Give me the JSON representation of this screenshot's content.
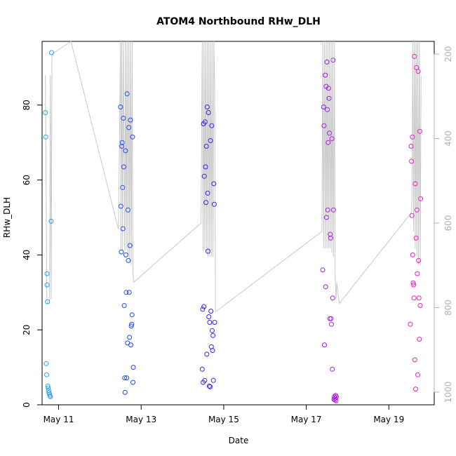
{
  "chart_data": {
    "type": "scatter",
    "title": "ATOM4 Northbound RHw_DLH",
    "xlabel": "Date",
    "ylabel": "RHw_DLH",
    "x_unit": "days since May 10 00:00",
    "xlim": [
      0.6,
      10.1
    ],
    "ylim": [
      0,
      97
    ],
    "x_ticks": [
      {
        "value": 1,
        "label": "May 11"
      },
      {
        "value": 3,
        "label": "May 13"
      },
      {
        "value": 5,
        "label": "May 15"
      },
      {
        "value": 7,
        "label": "May 17"
      },
      {
        "value": 9,
        "label": "May 19"
      }
    ],
    "y_ticks": [
      0,
      20,
      40,
      60,
      80
    ],
    "secondary_axis": {
      "label_side": "right",
      "reversed": true,
      "ylim": [
        1030,
        170
      ],
      "ticks": [
        200,
        400,
        600,
        800,
        1000
      ],
      "color": "#b0b0b0"
    },
    "series": [
      {
        "name": "RHw_DLH",
        "color_gradient": [
          "#29a3f0",
          "#1e1ee6",
          "#8a1ee6",
          "#ee1ec8"
        ],
        "points": [
          [
            0.68,
            78.0
          ],
          [
            0.69,
            71.5
          ],
          [
            0.7,
            11.0
          ],
          [
            0.71,
            8.0
          ],
          [
            0.72,
            35.0
          ],
          [
            0.72,
            32.0
          ],
          [
            0.73,
            27.5
          ],
          [
            0.74,
            5.0
          ],
          [
            0.75,
            4.5
          ],
          [
            0.76,
            3.8
          ],
          [
            0.77,
            3.2
          ],
          [
            0.78,
            2.8
          ],
          [
            0.79,
            2.4
          ],
          [
            0.8,
            2.2
          ],
          [
            0.82,
            49.0
          ],
          [
            0.83,
            94.0
          ],
          [
            2.5,
            79.5
          ],
          [
            2.51,
            53.0
          ],
          [
            2.52,
            40.8
          ],
          [
            2.53,
            69.0
          ],
          [
            2.54,
            70.0
          ],
          [
            2.55,
            58.0
          ],
          [
            2.56,
            47.0
          ],
          [
            2.57,
            76.5
          ],
          [
            2.58,
            63.5
          ],
          [
            2.59,
            26.5
          ],
          [
            2.6,
            7.2
          ],
          [
            2.61,
            3.3
          ],
          [
            2.62,
            67.8
          ],
          [
            2.63,
            40.0
          ],
          [
            2.64,
            30.0
          ],
          [
            2.65,
            7.2
          ],
          [
            2.66,
            83.0
          ],
          [
            2.67,
            16.5
          ],
          [
            2.68,
            52.0
          ],
          [
            2.69,
            38.5
          ],
          [
            2.7,
            74.0
          ],
          [
            2.71,
            30.0
          ],
          [
            2.72,
            18.0
          ],
          [
            2.73,
            42.5
          ],
          [
            2.74,
            76.0
          ],
          [
            2.75,
            16.0
          ],
          [
            2.76,
            21.0
          ],
          [
            2.77,
            21.5
          ],
          [
            2.78,
            24.0
          ],
          [
            2.79,
            71.5
          ],
          [
            2.8,
            6.0
          ],
          [
            2.81,
            10.0
          ],
          [
            4.48,
            9.5
          ],
          [
            4.49,
            25.5
          ],
          [
            4.5,
            6.0
          ],
          [
            4.51,
            75.0
          ],
          [
            4.52,
            26.2
          ],
          [
            4.53,
            61.0
          ],
          [
            4.54,
            6.5
          ],
          [
            4.55,
            75.5
          ],
          [
            4.56,
            63.5
          ],
          [
            4.57,
            54.0
          ],
          [
            4.58,
            69.0
          ],
          [
            4.59,
            13.5
          ],
          [
            4.6,
            79.5
          ],
          [
            4.61,
            56.5
          ],
          [
            4.62,
            41.0
          ],
          [
            4.63,
            78.0
          ],
          [
            4.64,
            23.5
          ],
          [
            4.65,
            5.0
          ],
          [
            4.66,
            22.0
          ],
          [
            4.67,
            4.8
          ],
          [
            4.68,
            70.5
          ],
          [
            4.69,
            25.0
          ],
          [
            4.7,
            15.5
          ],
          [
            4.71,
            74.5
          ],
          [
            4.72,
            19.8
          ],
          [
            4.73,
            14.5
          ],
          [
            4.74,
            18.5
          ],
          [
            4.75,
            6.5
          ],
          [
            4.76,
            59.0
          ],
          [
            4.77,
            53.5
          ],
          [
            4.78,
            22.0
          ],
          [
            7.4,
            36.0
          ],
          [
            7.42,
            79.5
          ],
          [
            7.43,
            74.5
          ],
          [
            7.44,
            16.0
          ],
          [
            7.46,
            88.0
          ],
          [
            7.47,
            31.5
          ],
          [
            7.48,
            85.0
          ],
          [
            7.49,
            50.0
          ],
          [
            7.5,
            91.5
          ],
          [
            7.51,
            78.8
          ],
          [
            7.52,
            52.0
          ],
          [
            7.53,
            70.0
          ],
          [
            7.54,
            84.5
          ],
          [
            7.55,
            81.8
          ],
          [
            7.56,
            72.5
          ],
          [
            7.57,
            23.0
          ],
          [
            7.58,
            45.5
          ],
          [
            7.59,
            44.5
          ],
          [
            7.6,
            23.0
          ],
          [
            7.61,
            21.5
          ],
          [
            7.62,
            71.0
          ],
          [
            7.63,
            9.5
          ],
          [
            7.64,
            28.5
          ],
          [
            7.65,
            92.0
          ],
          [
            7.66,
            52.0
          ],
          [
            7.67,
            1.5
          ],
          [
            7.68,
            2.2
          ],
          [
            7.69,
            1.3
          ],
          [
            7.7,
            1.8
          ],
          [
            7.71,
            2.5
          ],
          [
            7.72,
            1.1
          ],
          [
            7.73,
            2.1
          ],
          [
            9.52,
            21.5
          ],
          [
            9.54,
            69.0
          ],
          [
            9.55,
            65.0
          ],
          [
            9.56,
            50.5
          ],
          [
            9.57,
            71.5
          ],
          [
            9.58,
            40.0
          ],
          [
            9.59,
            32.5
          ],
          [
            9.6,
            32.0
          ],
          [
            9.61,
            28.5
          ],
          [
            9.62,
            93.0
          ],
          [
            9.63,
            12.0
          ],
          [
            9.64,
            59.0
          ],
          [
            9.65,
            4.2
          ],
          [
            9.66,
            44.5
          ],
          [
            9.67,
            90.0
          ],
          [
            9.68,
            52.0
          ],
          [
            9.69,
            35.0
          ],
          [
            9.7,
            8.0
          ],
          [
            9.71,
            89.0
          ],
          [
            9.72,
            38.5
          ],
          [
            9.73,
            28.5
          ],
          [
            9.74,
            17.5
          ],
          [
            9.75,
            73.0
          ],
          [
            9.76,
            26.5
          ],
          [
            9.77,
            55.0
          ]
        ]
      }
    ],
    "pressure_track": {
      "name": "pressure",
      "color": "#c8c8c8",
      "axis": "secondary",
      "points": [
        [
          0.68,
          250
        ],
        [
          0.7,
          560
        ],
        [
          0.71,
          750
        ],
        [
          0.72,
          780
        ],
        [
          0.73,
          790
        ],
        [
          0.75,
          790
        ],
        [
          0.77,
          790
        ],
        [
          0.78,
          780
        ],
        [
          0.8,
          250
        ],
        [
          0.82,
          780
        ],
        [
          0.84,
          200
        ],
        [
          1.3,
          170
        ],
        [
          2.45,
          615
        ],
        [
          2.5,
          170
        ],
        [
          2.51,
          665
        ],
        [
          2.53,
          170
        ],
        [
          2.55,
          665
        ],
        [
          2.57,
          170
        ],
        [
          2.6,
          665
        ],
        [
          2.62,
          170
        ],
        [
          2.64,
          665
        ],
        [
          2.66,
          170
        ],
        [
          2.68,
          680
        ],
        [
          2.7,
          170
        ],
        [
          2.72,
          690
        ],
        [
          2.74,
          170
        ],
        [
          2.76,
          700
        ],
        [
          2.78,
          170
        ],
        [
          2.8,
          720
        ],
        [
          2.82,
          740
        ],
        [
          4.45,
          600
        ],
        [
          4.48,
          170
        ],
        [
          4.5,
          665
        ],
        [
          4.52,
          170
        ],
        [
          4.54,
          665
        ],
        [
          4.56,
          170
        ],
        [
          4.58,
          665
        ],
        [
          4.6,
          170
        ],
        [
          4.62,
          680
        ],
        [
          4.64,
          170
        ],
        [
          4.66,
          680
        ],
        [
          4.68,
          170
        ],
        [
          4.7,
          680
        ],
        [
          4.72,
          170
        ],
        [
          4.74,
          680
        ],
        [
          4.76,
          170
        ],
        [
          4.78,
          280
        ],
        [
          4.8,
          810
        ],
        [
          7.38,
          620
        ],
        [
          7.4,
          170
        ],
        [
          7.42,
          660
        ],
        [
          7.44,
          170
        ],
        [
          7.46,
          660
        ],
        [
          7.48,
          170
        ],
        [
          7.5,
          660
        ],
        [
          7.52,
          170
        ],
        [
          7.54,
          660
        ],
        [
          7.56,
          170
        ],
        [
          7.58,
          660
        ],
        [
          7.6,
          170
        ],
        [
          7.62,
          670
        ],
        [
          7.64,
          170
        ],
        [
          7.66,
          680
        ],
        [
          7.68,
          170
        ],
        [
          7.7,
          730
        ],
        [
          7.72,
          780
        ],
        [
          7.74,
          740
        ],
        [
          7.76,
          760
        ],
        [
          7.8,
          790
        ],
        [
          9.55,
          575
        ],
        [
          9.56,
          540
        ],
        [
          9.58,
          170
        ],
        [
          9.6,
          620
        ],
        [
          9.62,
          170
        ],
        [
          9.64,
          660
        ],
        [
          9.66,
          170
        ],
        [
          9.68,
          680
        ],
        [
          9.7,
          170
        ],
        [
          9.72,
          700
        ],
        [
          9.74,
          170
        ],
        [
          9.76,
          700
        ],
        [
          9.78,
          250
        ]
      ]
    }
  }
}
